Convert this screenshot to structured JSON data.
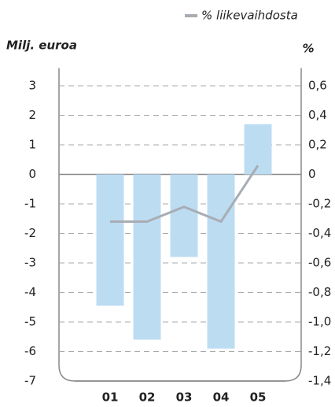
{
  "chart_data": {
    "type": "bar",
    "y_label": "Milj. euroa",
    "y2_label": "%",
    "categories": [
      "01",
      "02",
      "03",
      "04",
      "05"
    ],
    "series": [
      {
        "type": "bar",
        "color": "#bcdcf2",
        "values": [
          -4.45,
          -5.6,
          -2.8,
          -5.9,
          1.7
        ]
      },
      {
        "type": "line",
        "name": "% liikevaihdosta",
        "color": "#a8adb3",
        "axis": "y2",
        "values": [
          -0.32,
          -0.32,
          -0.22,
          -0.32,
          0.06
        ]
      }
    ],
    "ylim": [
      -7,
      3.6
    ],
    "yticks": [
      3,
      2,
      1,
      0,
      -1,
      -2,
      -3,
      -4,
      -5,
      -6,
      -7
    ],
    "y2lim": [
      -1.4,
      0.72
    ],
    "y2ticks": [
      {
        "value": 0.6,
        "label": "0,6"
      },
      {
        "value": 0.4,
        "label": "0,4"
      },
      {
        "value": 0.2,
        "label": "0,2"
      },
      0,
      {
        "value": -0.2,
        "label": "-0,2"
      },
      {
        "value": -0.4,
        "label": "-0,4"
      },
      {
        "value": -0.6,
        "label": "-0,6"
      },
      {
        "value": -0.8,
        "label": "-0,8"
      },
      {
        "value": -1.0,
        "label": "-1,0"
      },
      {
        "value": -1.2,
        "label": "-1,2"
      },
      {
        "value": -1.4,
        "label": "-1,4"
      }
    ],
    "grid": true,
    "legend": "top-right"
  }
}
